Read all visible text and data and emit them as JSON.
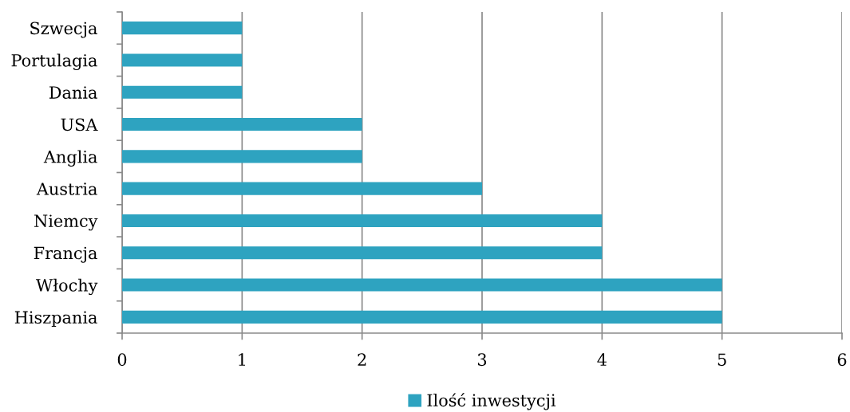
{
  "chart_data": {
    "type": "bar",
    "orientation": "horizontal",
    "categories": [
      "Szwecja",
      "Portulagia",
      "Dania",
      "USA",
      "Anglia",
      "Austria",
      "Niemcy",
      "Francja",
      "Włochy",
      "Hiszpania"
    ],
    "series": [
      {
        "name": "Ilość inwestycji",
        "color": "#2ea3c0",
        "values": [
          1,
          1,
          1,
          2,
          2,
          3,
          4,
          4,
          5,
          5
        ]
      }
    ],
    "xlim": [
      0,
      6
    ],
    "xticks": [
      0,
      1,
      2,
      3,
      4,
      5,
      6
    ],
    "grid": "x",
    "legend": "bottom"
  }
}
